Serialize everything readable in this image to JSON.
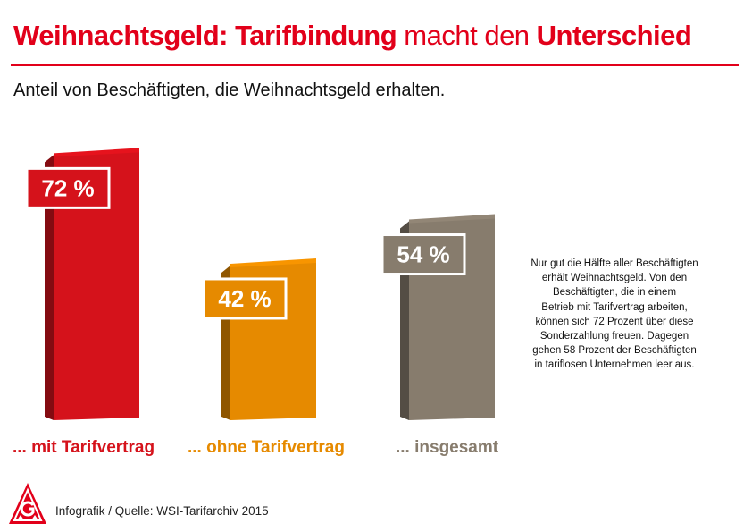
{
  "header": {
    "title_part1": "Weihnachtsgeld: Tarifbindung",
    "title_part2": " macht den ",
    "title_part3": "Unterschied",
    "subtitle": "Anteil von Beschäftigten, die Weihnachtsgeld erhalten."
  },
  "chart_data": {
    "type": "bar",
    "title": "Weihnachtsgeld: Tarifbindung macht den Unterschied",
    "subtitle": "Anteil von Beschäftigten, die Weihnachtsgeld erhalten.",
    "categories": [
      "... mit Tarifvertrag",
      "... ohne Tarifvertrag",
      "... insgesamt"
    ],
    "values": [
      72,
      42,
      54
    ],
    "value_labels": [
      "72 %",
      "42 %",
      "54 %"
    ],
    "unit": "%",
    "colors": [
      "#d5121b",
      "#e68a00",
      "#877c6d"
    ],
    "style": "3d-bars",
    "grid": false,
    "legend": "none"
  },
  "note": {
    "lines": [
      "Nur gut die Hälfte aller Beschäftigten",
      "erhält Weihnachtsgeld. Von den",
      "Beschäftigten, die in einem",
      "Betrieb mit Tarifvertrag arbeiten,",
      "können sich 72 Prozent über diese",
      "Sonderzahlung freuen. Dagegen",
      "gehen 58 Prozent der  Beschäftigten",
      "in tariflosen Unternehmen leer aus."
    ]
  },
  "footer": {
    "source": "Infografik / Quelle: WSI-Tarifarchiv 2015",
    "logo_colors": {
      "red": "#e2001a",
      "white": "#ffffff"
    }
  }
}
